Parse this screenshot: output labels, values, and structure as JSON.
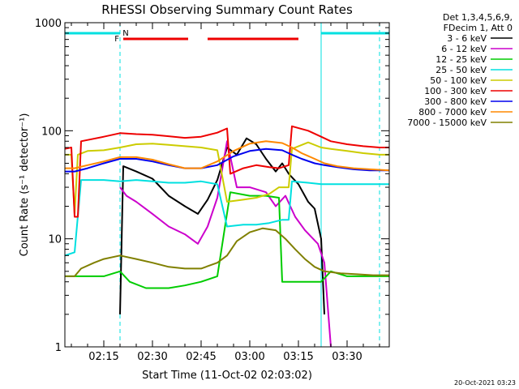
{
  "chart_data": {
    "type": "line",
    "title": "RHESSI Observing Summary Count Rates",
    "xlabel": "Start Time (11-Oct-02 02:03:02)",
    "ylabel": "Count Rate (s⁻¹ detector⁻¹)",
    "yscale": "log",
    "ylim": [
      1,
      1000
    ],
    "xlim_minutes": [
      "02:03",
      "03:43"
    ],
    "x_ticks": [
      "02:15",
      "02:30",
      "02:45",
      "03:00",
      "03:15",
      "03:30"
    ],
    "y_ticks": [
      "1",
      "10",
      "100",
      "1000"
    ],
    "legend_header": [
      "Det 1,3,4,5,6,9,",
      "FDecim 1, Att 0"
    ],
    "legend_position": "top-right, outside",
    "timestamp": "20-Oct-2021 03:23",
    "markers": {
      "F_label": "F",
      "N_label": "N"
    },
    "night_bars": [
      [
        "02:03",
        "02:20"
      ],
      [
        "03:22",
        "03:43"
      ]
    ],
    "flare_bars": [
      [
        "02:21",
        "02:41"
      ],
      [
        "02:47",
        "03:15"
      ]
    ],
    "dashed_lines": [
      "02:20",
      "03:40"
    ],
    "solid_lines": [
      "03:22"
    ],
    "series": [
      {
        "name": "3 - 6 keV",
        "color": "#000000",
        "points": [
          [
            "02:20",
            2
          ],
          [
            "02:21",
            47
          ],
          [
            "02:25",
            42
          ],
          [
            "02:30",
            36
          ],
          [
            "02:35",
            25
          ],
          [
            "02:40",
            20
          ],
          [
            "02:44",
            17
          ],
          [
            "02:47",
            23
          ],
          [
            "02:50",
            35
          ],
          [
            "02:53",
            70
          ],
          [
            "02:56",
            60
          ],
          [
            "02:59",
            85
          ],
          [
            "03:02",
            75
          ],
          [
            "03:05",
            55
          ],
          [
            "03:08",
            42
          ],
          [
            "03:10",
            50
          ],
          [
            "03:12",
            40
          ],
          [
            "03:15",
            32
          ],
          [
            "03:18",
            22
          ],
          [
            "03:20",
            19
          ],
          [
            "03:22",
            10
          ],
          [
            "03:23",
            2
          ]
        ]
      },
      {
        "name": "6 - 12 keV",
        "color": "#cc00cc",
        "points": [
          [
            "02:20",
            30
          ],
          [
            "02:22",
            25
          ],
          [
            "02:25",
            22
          ],
          [
            "02:30",
            17
          ],
          [
            "02:35",
            13
          ],
          [
            "02:40",
            11
          ],
          [
            "02:44",
            9
          ],
          [
            "02:47",
            13
          ],
          [
            "02:50",
            24
          ],
          [
            "02:53",
            80
          ],
          [
            "02:56",
            30
          ],
          [
            "03:00",
            30
          ],
          [
            "03:05",
            27
          ],
          [
            "03:08",
            20
          ],
          [
            "03:11",
            25
          ],
          [
            "03:14",
            16
          ],
          [
            "03:17",
            12
          ],
          [
            "03:21",
            9
          ],
          [
            "03:23",
            6
          ],
          [
            "03:25",
            1
          ]
        ]
      },
      {
        "name": "12 - 25 keV",
        "color": "#00cc00",
        "points": [
          [
            "02:03",
            4.5
          ],
          [
            "02:06",
            4.5
          ],
          [
            "02:08",
            4.5
          ],
          [
            "02:12",
            4.5
          ],
          [
            "02:15",
            4.5
          ],
          [
            "02:20",
            5
          ],
          [
            "02:23",
            4
          ],
          [
            "02:28",
            3.5
          ],
          [
            "02:35",
            3.5
          ],
          [
            "02:40",
            3.7
          ],
          [
            "02:45",
            4
          ],
          [
            "02:50",
            4.5
          ],
          [
            "02:54",
            27
          ],
          [
            "03:00",
            25
          ],
          [
            "03:05",
            25
          ],
          [
            "03:09",
            24
          ],
          [
            "03:10",
            4
          ],
          [
            "03:15",
            4
          ],
          [
            "03:20",
            4
          ],
          [
            "03:22",
            4
          ],
          [
            "03:25",
            5
          ],
          [
            "03:30",
            4.5
          ],
          [
            "03:35",
            4.5
          ],
          [
            "03:40",
            4.5
          ],
          [
            "03:43",
            4.5
          ]
        ]
      },
      {
        "name": "25 - 50 keV",
        "color": "#00e0e0",
        "points": [
          [
            "02:03",
            7
          ],
          [
            "02:06",
            7.5
          ],
          [
            "02:08",
            35
          ],
          [
            "02:15",
            35
          ],
          [
            "02:20",
            34
          ],
          [
            "02:25",
            35
          ],
          [
            "02:30",
            34
          ],
          [
            "02:35",
            33
          ],
          [
            "02:40",
            33
          ],
          [
            "02:45",
            34
          ],
          [
            "02:50",
            32
          ],
          [
            "02:53",
            13
          ],
          [
            "02:58",
            13.5
          ],
          [
            "03:02",
            13.5
          ],
          [
            "03:06",
            14
          ],
          [
            "03:10",
            15
          ],
          [
            "03:12",
            15
          ],
          [
            "03:13",
            34
          ],
          [
            "03:18",
            33
          ],
          [
            "03:22",
            32
          ],
          [
            "03:25",
            32
          ],
          [
            "03:30",
            32
          ],
          [
            "03:35",
            32
          ],
          [
            "03:40",
            32
          ],
          [
            "03:43",
            32
          ]
        ]
      },
      {
        "name": "50 - 100 keV",
        "color": "#cccc00",
        "points": [
          [
            "02:03",
            60
          ],
          [
            "02:05",
            60
          ],
          [
            "02:06",
            17
          ],
          [
            "02:07",
            60
          ],
          [
            "02:10",
            65
          ],
          [
            "02:15",
            66
          ],
          [
            "02:20",
            70
          ],
          [
            "02:25",
            75
          ],
          [
            "02:30",
            76
          ],
          [
            "02:35",
            74
          ],
          [
            "02:40",
            72
          ],
          [
            "02:45",
            70
          ],
          [
            "02:50",
            66
          ],
          [
            "02:53",
            22
          ],
          [
            "02:58",
            23
          ],
          [
            "03:02",
            24
          ],
          [
            "03:06",
            26
          ],
          [
            "03:09",
            30
          ],
          [
            "03:12",
            30
          ],
          [
            "03:13",
            68
          ],
          [
            "03:18",
            78
          ],
          [
            "03:22",
            70
          ],
          [
            "03:25",
            68
          ],
          [
            "03:30",
            65
          ],
          [
            "03:35",
            62
          ],
          [
            "03:40",
            60
          ],
          [
            "03:43",
            60
          ]
        ]
      },
      {
        "name": "100 - 300 keV",
        "color": "#ee0000",
        "points": [
          [
            "02:03",
            68
          ],
          [
            "02:05",
            70
          ],
          [
            "02:06",
            16
          ],
          [
            "02:07",
            16
          ],
          [
            "02:08",
            80
          ],
          [
            "02:15",
            88
          ],
          [
            "02:20",
            95
          ],
          [
            "02:25",
            93
          ],
          [
            "02:30",
            92
          ],
          [
            "02:35",
            89
          ],
          [
            "02:40",
            86
          ],
          [
            "02:45",
            88
          ],
          [
            "02:50",
            96
          ],
          [
            "02:53",
            105
          ],
          [
            "02:54",
            40
          ],
          [
            "02:58",
            45
          ],
          [
            "03:02",
            48
          ],
          [
            "03:06",
            46
          ],
          [
            "03:09",
            45
          ],
          [
            "03:12",
            48
          ],
          [
            "03:13",
            110
          ],
          [
            "03:18",
            100
          ],
          [
            "03:22",
            88
          ],
          [
            "03:25",
            80
          ],
          [
            "03:30",
            75
          ],
          [
            "03:35",
            72
          ],
          [
            "03:40",
            70
          ],
          [
            "03:43",
            70
          ]
        ]
      },
      {
        "name": "300 - 800 keV",
        "color": "#0000ee",
        "points": [
          [
            "02:03",
            42
          ],
          [
            "02:06",
            42
          ],
          [
            "02:10",
            45
          ],
          [
            "02:15",
            50
          ],
          [
            "02:20",
            55
          ],
          [
            "02:25",
            55
          ],
          [
            "02:30",
            52
          ],
          [
            "02:35",
            48
          ],
          [
            "02:40",
            45
          ],
          [
            "02:45",
            45
          ],
          [
            "02:50",
            48
          ],
          [
            "02:55",
            58
          ],
          [
            "03:00",
            65
          ],
          [
            "03:05",
            68
          ],
          [
            "03:10",
            66
          ],
          [
            "03:13",
            60
          ],
          [
            "03:16",
            55
          ],
          [
            "03:20",
            50
          ],
          [
            "03:23",
            48
          ],
          [
            "03:27",
            46
          ],
          [
            "03:32",
            44
          ],
          [
            "03:37",
            43
          ],
          [
            "03:43",
            43
          ]
        ]
      },
      {
        "name": "800 - 7000 keV",
        "color": "#ff8800",
        "points": [
          [
            "02:03",
            45
          ],
          [
            "02:06",
            45
          ],
          [
            "02:10",
            48
          ],
          [
            "02:15",
            52
          ],
          [
            "02:20",
            57
          ],
          [
            "02:25",
            57
          ],
          [
            "02:30",
            54
          ],
          [
            "02:35",
            49
          ],
          [
            "02:40",
            45
          ],
          [
            "02:45",
            45
          ],
          [
            "02:50",
            52
          ],
          [
            "02:55",
            65
          ],
          [
            "03:00",
            76
          ],
          [
            "03:05",
            80
          ],
          [
            "03:10",
            77
          ],
          [
            "03:13",
            70
          ],
          [
            "03:16",
            62
          ],
          [
            "03:20",
            55
          ],
          [
            "03:23",
            50
          ],
          [
            "03:27",
            47
          ],
          [
            "03:32",
            45
          ],
          [
            "03:37",
            44
          ],
          [
            "03:43",
            43
          ]
        ]
      },
      {
        "name": "7000 - 15000 keV",
        "color": "#808000",
        "points": [
          [
            "02:03",
            4.5
          ],
          [
            "02:06",
            4.5
          ],
          [
            "02:08",
            5.3
          ],
          [
            "02:12",
            6
          ],
          [
            "02:15",
            6.5
          ],
          [
            "02:20",
            7
          ],
          [
            "02:25",
            6.5
          ],
          [
            "02:30",
            6
          ],
          [
            "02:35",
            5.5
          ],
          [
            "02:40",
            5.3
          ],
          [
            "02:45",
            5.3
          ],
          [
            "02:50",
            6
          ],
          [
            "02:53",
            7
          ],
          [
            "02:56",
            9.5
          ],
          [
            "03:00",
            11.5
          ],
          [
            "03:04",
            12.5
          ],
          [
            "03:08",
            12
          ],
          [
            "03:11",
            10
          ],
          [
            "03:14",
            8
          ],
          [
            "03:17",
            6.5
          ],
          [
            "03:20",
            5.5
          ],
          [
            "03:23",
            5
          ],
          [
            "03:28",
            4.8
          ],
          [
            "03:33",
            4.7
          ],
          [
            "03:38",
            4.6
          ],
          [
            "03:43",
            4.6
          ]
        ]
      }
    ]
  }
}
